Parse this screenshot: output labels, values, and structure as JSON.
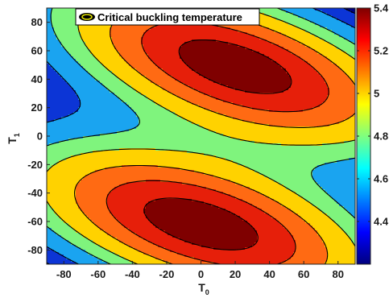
{
  "chart_data": {
    "type": "contour",
    "legend": {
      "entries": [
        "Critical buckling temperature"
      ],
      "placement": "top-left"
    },
    "xlabel": {
      "main": "T",
      "sub": "0"
    },
    "ylabel": {
      "main": "T",
      "sub": "1"
    },
    "xlim": [
      -90,
      90
    ],
    "ylim": [
      -90,
      90
    ],
    "xticks": [
      -80,
      -60,
      -40,
      -20,
      0,
      20,
      40,
      60,
      80
    ],
    "yticks": [
      -80,
      -60,
      -40,
      -20,
      0,
      20,
      40,
      60,
      80
    ],
    "colorbar": {
      "range": [
        4.2,
        5.4
      ],
      "ticks": [
        4.4,
        4.6,
        4.8,
        5,
        5.2,
        5.4
      ],
      "colormap": "jet"
    },
    "contour_levels": [
      4.35,
      4.45,
      4.6,
      4.75,
      4.95,
      5.15,
      5.35
    ],
    "fill_colors": [
      "#00007f",
      "#0c35d6",
      "#1aa4f0",
      "#7ff47d",
      "#ffd200",
      "#ff6a13",
      "#e61f0a",
      "#7f0000"
    ],
    "field_model": {
      "base": 4.2,
      "lobes": [
        {
          "x0": 20,
          "y0": 49,
          "amplitude": 1.28,
          "sigma_along": 75,
          "sigma_across": 31,
          "angle_deg": -22
        },
        {
          "x0": 0,
          "y0": -62,
          "amplitude": 1.28,
          "sigma_along": 75,
          "sigma_across": 31,
          "angle_deg": -20
        }
      ]
    },
    "max_regions": [
      {
        "x": 20,
        "y": 49
      },
      {
        "x": 0,
        "y": -62
      }
    ]
  }
}
